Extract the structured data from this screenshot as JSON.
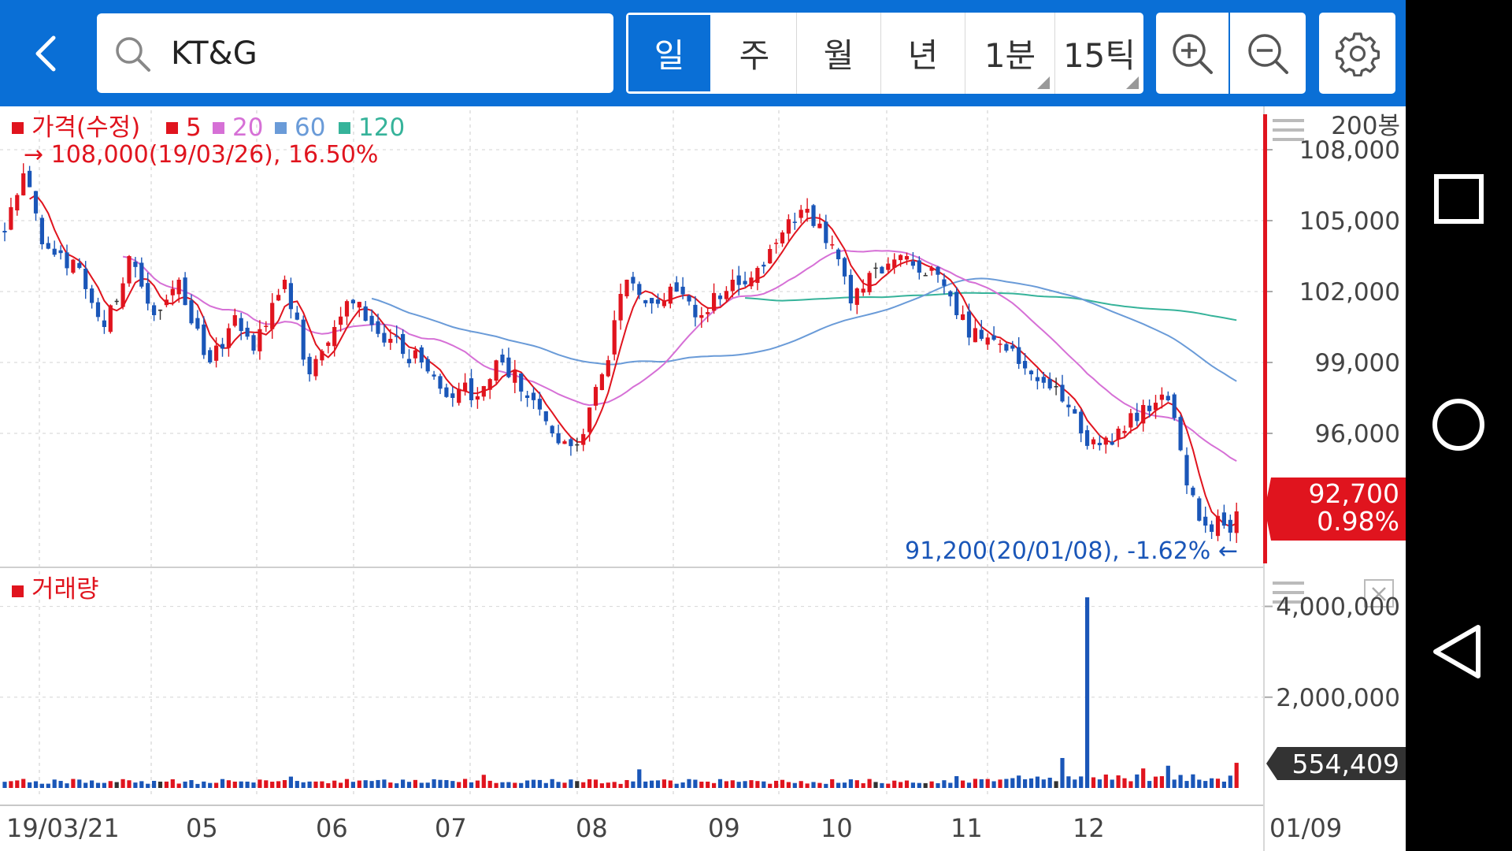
{
  "header": {
    "back_label": "back",
    "search": {
      "value": "KT&G"
    },
    "period_tabs": [
      {
        "label": "일",
        "active": true,
        "has_menu": false
      },
      {
        "label": "주",
        "active": false,
        "has_menu": false
      },
      {
        "label": "월",
        "active": false,
        "has_menu": false
      },
      {
        "label": "년",
        "active": false,
        "has_menu": false
      },
      {
        "label": "1분",
        "active": false,
        "has_menu": true
      },
      {
        "label": "15틱",
        "active": false,
        "has_menu": true
      }
    ],
    "icons": [
      "chevron-left-icon",
      "search-icon",
      "zoom-in-icon",
      "zoom-out-icon",
      "gear-icon"
    ]
  },
  "price_panel": {
    "legend": [
      {
        "label": "가격(수정)",
        "color": "#e0141e"
      },
      {
        "label": "5",
        "color": "#e0141e"
      },
      {
        "label": "20",
        "color": "#d670d6"
      },
      {
        "label": "60",
        "color": "#6a9bd8"
      },
      {
        "label": "120",
        "color": "#36b39a"
      }
    ],
    "high_annotation": "→ 108,000(19/03/26), 16.50%",
    "low_annotation": "91,200(20/01/08), -1.62% ←",
    "bar_count_label": "200봉",
    "y_ticks": [
      "108,000",
      "105,000",
      "102,000",
      "99,000",
      "96,000"
    ],
    "current_price": "92,700",
    "current_change": "0.98%"
  },
  "volume_panel": {
    "legend_label": "거래량",
    "y_ticks": [
      "4,000,000",
      "2,000,000"
    ],
    "current_volume": "554,409"
  },
  "colors": {
    "up": "#e0141e",
    "down": "#1a56b8",
    "flat": "#333333",
    "accent": "#0a6fd6",
    "ma5": "#e0141e",
    "ma20": "#d670d6",
    "ma60": "#6a9bd8",
    "ma120": "#36b39a"
  },
  "chart_data": {
    "type": "candlestick",
    "x_tick_labels": [
      "19/03/21",
      "05",
      "06",
      "07",
      "08",
      "09",
      "10",
      "11",
      "12",
      "01/09"
    ],
    "price_ylim": [
      90500,
      109500
    ],
    "volume_ylim": [
      0,
      4600000
    ],
    "price_anchors": [
      [
        0,
        104500
      ],
      [
        3,
        107000
      ],
      [
        6,
        104000
      ],
      [
        12,
        103000
      ],
      [
        16,
        100500
      ],
      [
        20,
        103500
      ],
      [
        24,
        101000
      ],
      [
        28,
        102500
      ],
      [
        33,
        99000
      ],
      [
        37,
        101000
      ],
      [
        40,
        99500
      ],
      [
        45,
        102500
      ],
      [
        49,
        98500
      ],
      [
        53,
        100500
      ],
      [
        56,
        101500
      ],
      [
        62,
        100000
      ],
      [
        67,
        99000
      ],
      [
        72,
        97500
      ],
      [
        77,
        98000
      ],
      [
        80,
        99000
      ],
      [
        84,
        97500
      ],
      [
        88,
        96000
      ],
      [
        92,
        95500
      ],
      [
        96,
        98500
      ],
      [
        100,
        102500
      ],
      [
        104,
        101500
      ],
      [
        108,
        102000
      ],
      [
        112,
        101000
      ],
      [
        117,
        102500
      ],
      [
        121,
        103000
      ],
      [
        125,
        104500
      ],
      [
        129,
        105500
      ],
      [
        133,
        104000
      ],
      [
        136,
        101500
      ],
      [
        140,
        103000
      ],
      [
        145,
        103500
      ],
      [
        149,
        103000
      ],
      [
        153,
        101000
      ],
      [
        157,
        100000
      ],
      [
        161,
        99500
      ],
      [
        165,
        98500
      ],
      [
        169,
        98000
      ],
      [
        173,
        96000
      ],
      [
        176,
        95500
      ],
      [
        179,
        96200
      ],
      [
        183,
        97200
      ],
      [
        187,
        97400
      ],
      [
        190,
        93800
      ],
      [
        193,
        92100
      ],
      [
        196,
        92100
      ],
      [
        197,
        91800
      ],
      [
        198,
        92700
      ]
    ],
    "volume_spikes": [
      [
        46,
        250000
      ],
      [
        77,
        290000
      ],
      [
        102,
        410000
      ],
      [
        153,
        260000
      ],
      [
        170,
        660000
      ],
      [
        174,
        4200000
      ],
      [
        183,
        430000
      ],
      [
        187,
        490000
      ],
      [
        191,
        300000
      ],
      [
        198,
        554409
      ]
    ],
    "volume_base": 160000
  }
}
